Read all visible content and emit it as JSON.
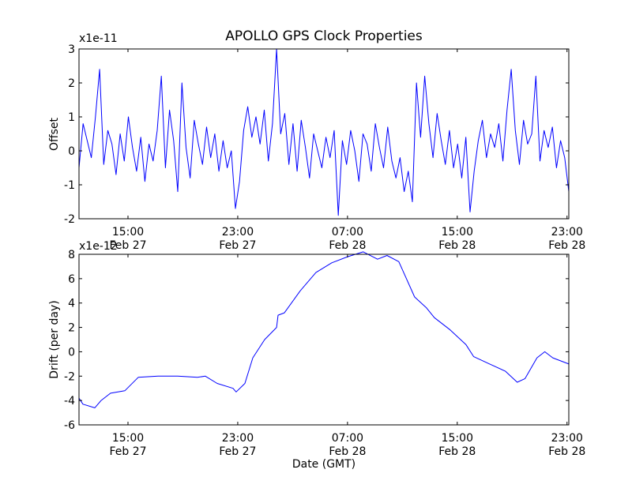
{
  "title": "APOLLO GPS Clock Properties",
  "xlabel": "Date (GMT)",
  "x_ticks": [
    {
      "h": 0,
      "time": "15:00",
      "date": "Feb 27"
    },
    {
      "h": 8,
      "time": "23:00",
      "date": "Feb 27"
    },
    {
      "h": 16,
      "time": "07:00",
      "date": "Feb 28"
    },
    {
      "h": 24,
      "time": "15:00",
      "date": "Feb 28"
    },
    {
      "h": 32,
      "time": "23:00",
      "date": "Feb 28"
    }
  ],
  "chart_data": [
    {
      "type": "line",
      "name": "offset",
      "ylabel": "Offset",
      "multiplier_label": "x1e-11",
      "x_unit": "hours since Feb 27 15:00 GMT",
      "xlim": [
        -3.57,
        32.13
      ],
      "ylim": [
        -2,
        3
      ],
      "yticks": [
        "-2",
        "-1",
        "0",
        "1",
        "2",
        "3"
      ],
      "color": "#0000ff",
      "x_start": -3.57,
      "x_step": 0.3,
      "values": [
        -0.5,
        0.8,
        0.3,
        -0.2,
        1.0,
        2.4,
        -0.4,
        0.6,
        0.2,
        -0.7,
        0.5,
        -0.3,
        1.0,
        0.1,
        -0.6,
        0.4,
        -0.9,
        0.2,
        -0.3,
        0.6,
        2.2,
        -0.5,
        1.2,
        0.3,
        -1.2,
        2.0,
        0.1,
        -0.8,
        0.9,
        0.2,
        -0.4,
        0.7,
        -0.2,
        0.5,
        -0.6,
        0.3,
        -0.5,
        0.0,
        -1.7,
        -0.9,
        0.6,
        1.3,
        0.4,
        1.0,
        0.2,
        1.2,
        -0.3,
        0.8,
        3.0,
        0.5,
        1.1,
        -0.4,
        0.8,
        -0.6,
        0.9,
        0.1,
        -0.8,
        0.5,
        0.0,
        -0.5,
        0.4,
        -0.2,
        0.6,
        -1.9,
        0.3,
        -0.4,
        0.6,
        0.0,
        -0.9,
        0.5,
        0.2,
        -0.6,
        0.8,
        0.1,
        -0.5,
        0.7,
        -0.3,
        -0.8,
        -0.2,
        -1.2,
        -0.6,
        -1.5,
        2.0,
        0.4,
        2.2,
        0.8,
        -0.2,
        1.1,
        0.3,
        -0.4,
        0.6,
        -0.5,
        0.2,
        -0.8,
        0.4,
        -1.8,
        -0.6,
        0.3,
        0.9,
        -0.2,
        0.5,
        0.1,
        0.8,
        -0.3,
        1.2,
        2.4,
        0.6,
        -0.4,
        0.9,
        0.2,
        0.5,
        2.2,
        -0.3,
        0.6,
        0.1,
        0.7,
        -0.5,
        0.3,
        -0.2,
        -1.2
      ]
    },
    {
      "type": "line",
      "name": "drift",
      "ylabel": "Drift (per day)",
      "multiplier_label": "x1e-12",
      "x_unit": "hours since Feb 27 15:00 GMT",
      "xlim": [
        -3.57,
        32.13
      ],
      "ylim": [
        -6,
        8
      ],
      "yticks": [
        "-6",
        "-4",
        "-2",
        "0",
        "2",
        "4",
        "6",
        "8"
      ],
      "color": "#0000ff",
      "x": [
        -3.57,
        -3.28,
        -2.42,
        -1.96,
        -1.27,
        -0.23,
        0.75,
        2.19,
        3.63,
        5.06,
        5.64,
        6.5,
        7.65,
        7.88,
        8.52,
        9.1,
        9.96,
        10.83,
        10.94,
        11.4,
        12.55,
        13.7,
        14.85,
        16.0,
        17.15,
        18.19,
        18.88,
        19.74,
        20.89,
        21.76,
        22.33,
        23.48,
        24.63,
        25.2,
        26.36,
        27.51,
        28.37,
        28.94,
        29.81,
        30.38,
        30.96,
        32.13
      ],
      "y": [
        -3.8,
        -4.3,
        -4.6,
        -4.0,
        -3.4,
        -3.2,
        -2.1,
        -2.0,
        -2.0,
        -2.1,
        -2.0,
        -2.6,
        -3.0,
        -3.3,
        -2.6,
        -0.5,
        1.0,
        2.0,
        3.0,
        3.2,
        5.0,
        6.5,
        7.3,
        7.8,
        8.2,
        7.6,
        7.9,
        7.4,
        4.5,
        3.6,
        2.8,
        1.8,
        0.6,
        -0.4,
        -1.0,
        -1.6,
        -2.5,
        -2.2,
        -0.5,
        0.0,
        -0.5,
        -1.0
      ]
    }
  ]
}
